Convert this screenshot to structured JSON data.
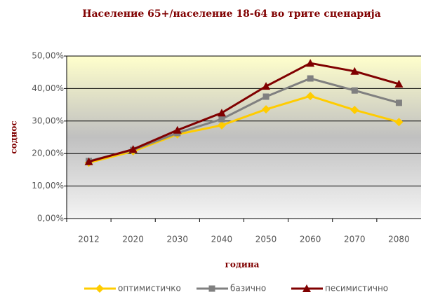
{
  "chart_data": {
    "type": "line",
    "title": "Население 65+/население 18-64 во трите сценарија",
    "x_label": "година",
    "y_label": "соднос",
    "categories": [
      "2012",
      "2020",
      "2030",
      "2040",
      "2050",
      "2060",
      "2070",
      "2080"
    ],
    "series": [
      {
        "name": "оптимистичко",
        "color": "#ffcc00",
        "marker": "diamond",
        "values": [
          17.2,
          20.7,
          25.9,
          28.7,
          33.6,
          37.7,
          33.4,
          29.7
        ]
      },
      {
        "name": "базично",
        "color": "#808080",
        "marker": "square",
        "values": [
          17.7,
          21.1,
          26.3,
          30.6,
          37.5,
          43.1,
          39.4,
          35.6
        ]
      },
      {
        "name": "песимистично",
        "color": "#800000",
        "marker": "triangle",
        "values": [
          17.5,
          21.3,
          27.2,
          32.5,
          40.7,
          47.8,
          45.3,
          41.4
        ]
      }
    ],
    "ylim": [
      0,
      50
    ],
    "yticks": [
      {
        "value": 0,
        "label": "0,00%"
      },
      {
        "value": 10,
        "label": "10,00%"
      },
      {
        "value": 20,
        "label": "20,00%"
      },
      {
        "value": 30,
        "label": "30,00%"
      },
      {
        "value": 40,
        "label": "40,00%"
      },
      {
        "value": 50,
        "label": "50,00%"
      }
    ],
    "grid": true,
    "legend": "bottom"
  }
}
